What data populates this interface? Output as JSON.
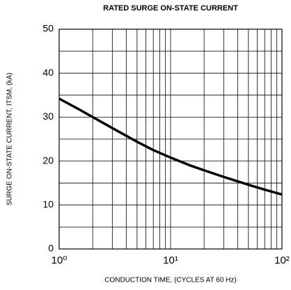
{
  "chart_data": {
    "type": "line",
    "title": "RATED SURGE ON-STATE CURRENT",
    "x_label": "CONDUCTION TIME, (CYCLES AT 60 Hz)",
    "y_label": "SURGE ON-STATE CURRENT, ITSM, (kA)",
    "x": [
      1,
      1.5,
      2,
      3,
      5,
      7,
      10,
      15,
      20,
      30,
      50,
      70,
      100
    ],
    "series": [
      {
        "name": "ITSM",
        "color": "#000000",
        "values": [
          34.2,
          31.8,
          30.0,
          27.5,
          24.4,
          22.5,
          20.8,
          19.0,
          17.9,
          16.4,
          14.6,
          13.5,
          12.4
        ]
      }
    ],
    "xscale": "log",
    "xlim": [
      1,
      100
    ],
    "xticks": [
      {
        "value": 1,
        "label": "10⁰"
      },
      {
        "value": 10,
        "label": "10¹"
      },
      {
        "value": 100,
        "label": "10²"
      }
    ],
    "minor_xticks": [
      2,
      3,
      4,
      5,
      6,
      7,
      8,
      9,
      20,
      30,
      40,
      50,
      60,
      70,
      80,
      90
    ],
    "ylim": [
      0,
      50
    ],
    "yticks": [
      0,
      10,
      20,
      30,
      40,
      50
    ],
    "minor_yticks": [
      5,
      15,
      25,
      35,
      45
    ],
    "grid": true
  }
}
